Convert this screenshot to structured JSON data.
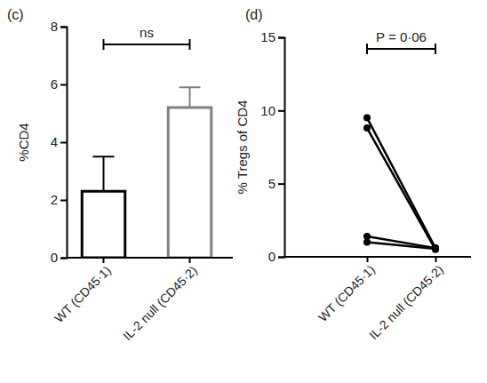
{
  "chart_data": [
    {
      "type": "bar",
      "title": "(c)",
      "y_label": "%CD4",
      "annotation": "ns",
      "categories": [
        "WT (CD45·1)",
        "IL-2 null (CD45·2)"
      ],
      "values": [
        2.3,
        5.2
      ],
      "errors": [
        1.2,
        0.7
      ],
      "colors": [
        "#000000",
        "#808080"
      ],
      "ylim": [
        0,
        8
      ],
      "yticks": [
        0,
        2,
        4,
        6,
        8
      ]
    },
    {
      "type": "line",
      "title": "(d)",
      "y_label": "% Tregs of CD4",
      "annotation": "P = 0·06",
      "categories": [
        "WT (CD45·1)",
        "IL-2 null (CD45·2)"
      ],
      "series": [
        {
          "values": [
            9.5,
            0.6
          ],
          "color": "#000000",
          "marker": "circle"
        },
        {
          "values": [
            8.8,
            0.5
          ],
          "color": "#000000",
          "marker": "circle"
        },
        {
          "values": [
            1.4,
            0.6
          ],
          "color": "#000000",
          "marker": "circle"
        },
        {
          "values": [
            1.0,
            0.55
          ],
          "color": "#000000",
          "marker": "circle"
        }
      ],
      "ylim": [
        0,
        15
      ],
      "yticks": [
        0,
        5,
        10,
        15
      ]
    }
  ]
}
